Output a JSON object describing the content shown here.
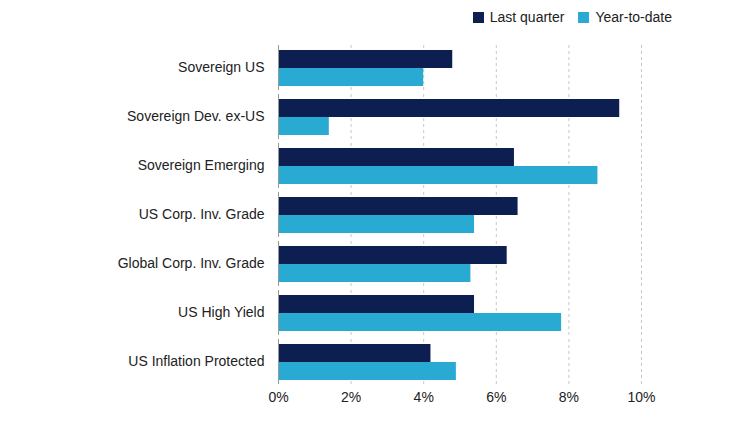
{
  "chart_data": {
    "type": "bar",
    "orientation": "horizontal",
    "legend": "top-right",
    "grid": true,
    "categories": [
      "Sovereign US",
      "Sovereign Dev. ex-US",
      "Sovereign Emerging",
      "US Corp. Inv. Grade",
      "Global Corp. Inv. Grade",
      "US High Yield",
      "US Inflation Protected"
    ],
    "series": [
      {
        "name": "Last quarter",
        "color": "#0c1f50",
        "values": [
          4.8,
          9.4,
          6.5,
          6.6,
          6.3,
          5.4,
          4.2
        ]
      },
      {
        "name": "Year-to-date",
        "color": "#29aad2",
        "values": [
          4.0,
          1.4,
          8.8,
          5.4,
          5.3,
          7.8,
          4.9
        ]
      }
    ],
    "xlim": [
      0,
      10
    ],
    "xticks": [
      {
        "value": 0,
        "label": "0%"
      },
      {
        "value": 2,
        "label": "2%"
      },
      {
        "value": 4,
        "label": "4%"
      },
      {
        "value": 6,
        "label": "6%"
      },
      {
        "value": 8,
        "label": "8%"
      },
      {
        "value": 10,
        "label": "10%"
      }
    ]
  }
}
